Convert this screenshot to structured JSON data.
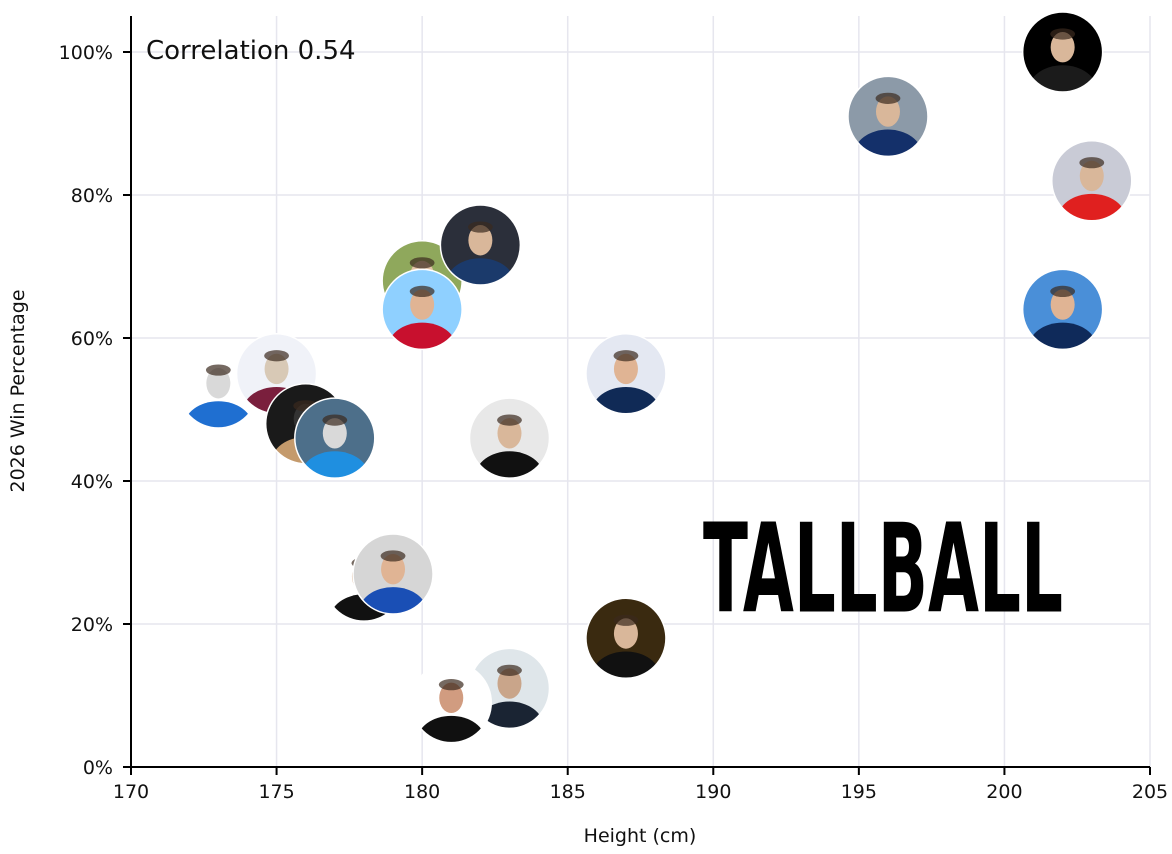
{
  "chart_data": {
    "type": "scatter",
    "title": "",
    "xlabel": "Height (cm)",
    "ylabel": "2026 Win Percentage",
    "xlim": [
      170,
      205
    ],
    "ylim": [
      0,
      1.05
    ],
    "xticks": [
      170,
      175,
      180,
      185,
      190,
      195,
      200,
      205
    ],
    "yticks": [
      0,
      0.2,
      0.4,
      0.6,
      0.8,
      1.0
    ],
    "ytick_labels": [
      "0%",
      "20%",
      "40%",
      "60%",
      "80%",
      "100%"
    ],
    "grid": true,
    "annotation": "Correlation 0.54",
    "logo_text": "TALLBALL",
    "marker": "circular headshot photo",
    "points": [
      {
        "x": 173,
        "y": 0.53,
        "colors": [
          "#ffffff",
          "#1f6fd1",
          "#d9d9d9"
        ]
      },
      {
        "x": 175,
        "y": 0.55,
        "colors": [
          "#f0f2f8",
          "#7a1f3d",
          "#d8c9b6"
        ]
      },
      {
        "x": 176,
        "y": 0.48,
        "colors": [
          "#1a1a1a",
          "#c49a6c",
          "#333333"
        ]
      },
      {
        "x": 177,
        "y": 0.46,
        "colors": [
          "#4d6f8a",
          "#1f8fe0",
          "#d9d9d9"
        ]
      },
      {
        "x": 180,
        "y": 0.68,
        "colors": [
          "#8fa85c",
          "#0f3a8a",
          "#e0c2a5"
        ]
      },
      {
        "x": 180,
        "y": 0.64,
        "colors": [
          "#8fd0ff",
          "#c8102e",
          "#e0b494"
        ]
      },
      {
        "x": 182,
        "y": 0.73,
        "colors": [
          "#2b2f3a",
          "#1b3a6b",
          "#d9b79a"
        ]
      },
      {
        "x": 178,
        "y": 0.26,
        "colors": [
          "#ffffff",
          "#111111",
          "#d9b79a"
        ]
      },
      {
        "x": 179,
        "y": 0.27,
        "colors": [
          "#d6d6d6",
          "#1a4fb5",
          "#e0b494"
        ]
      },
      {
        "x": 183,
        "y": 0.46,
        "colors": [
          "#e8e8e8",
          "#111111",
          "#d9b79a"
        ]
      },
      {
        "x": 187,
        "y": 0.55,
        "colors": [
          "#e4e8f2",
          "#102a56",
          "#e0b494"
        ]
      },
      {
        "x": 187,
        "y": 0.18,
        "colors": [
          "#3a2a10",
          "#111111",
          "#d9b79a"
        ]
      },
      {
        "x": 183,
        "y": 0.11,
        "colors": [
          "#dfe6ea",
          "#1a2433",
          "#c9a58a"
        ]
      },
      {
        "x": 181,
        "y": 0.09,
        "colors": [
          "#ffffff",
          "#101010",
          "#d19c80"
        ]
      },
      {
        "x": 196,
        "y": 0.91,
        "colors": [
          "#8c9aa8",
          "#14306a",
          "#d9b79a"
        ]
      },
      {
        "x": 202,
        "y": 1.0,
        "colors": [
          "#000000",
          "#1b1b1b",
          "#d9b79a"
        ]
      },
      {
        "x": 203,
        "y": 0.82,
        "colors": [
          "#c9cbd6",
          "#e0201f",
          "#d9b79a"
        ]
      },
      {
        "x": 202,
        "y": 0.64,
        "colors": [
          "#4a8fd8",
          "#0f2a5a",
          "#e0b494"
        ]
      }
    ]
  }
}
